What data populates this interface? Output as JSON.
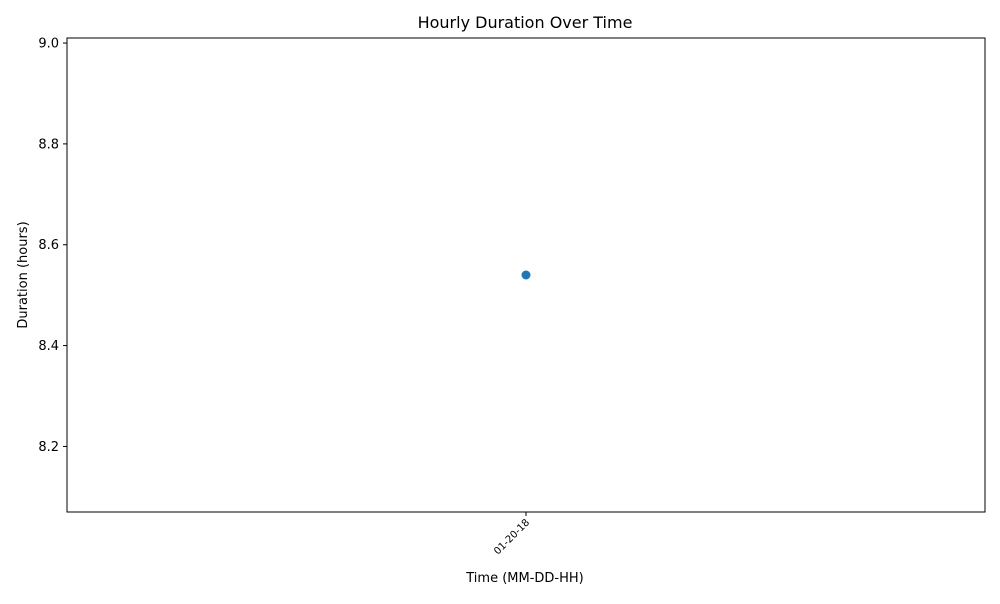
{
  "chart_data": {
    "type": "scatter",
    "title": "Hourly Duration Over Time",
    "xlabel": "Time (MM-DD-HH)",
    "ylabel": "Duration (hours)",
    "categories": [
      "01-20-18"
    ],
    "series": [
      {
        "color": "#1f77b4",
        "points": [
          {
            "x": "01-20-18",
            "y": 8.54
          }
        ]
      }
    ],
    "ylim": [
      8.07,
      9.01
    ],
    "yticks": [
      8.2,
      8.4,
      8.6,
      8.8,
      9.0
    ],
    "ytick_labels": [
      "8.2",
      "8.4",
      "8.6",
      "8.8",
      "9.0"
    ],
    "xtick_rotation_deg": 45,
    "grid": false,
    "legend": "none"
  }
}
